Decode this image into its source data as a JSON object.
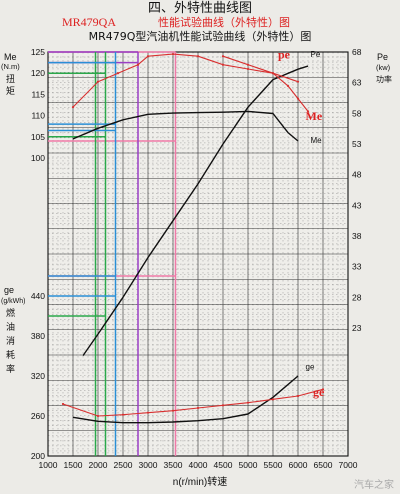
{
  "header": {
    "section_title": "四、外特性曲线图",
    "red_title_model": "MR479QA",
    "red_title_text": "性能试验曲线（外特性）图",
    "black_title": "MR479Q型汽油机性能试验曲线（外特性）图"
  },
  "watermark": "汽车之家",
  "colors": {
    "black_curve": "#111111",
    "red_curve": "#d83030",
    "green_lines": "#2aa84a",
    "blue_lines": "#2a8fd6",
    "purple_lines": "#9a3fc4",
    "pink_lines": "#f07aa8",
    "grid": "#555555"
  },
  "chart_data": {
    "type": "line",
    "xlabel": "n(r/min)转速",
    "xlim": [
      1000,
      7000
    ],
    "x_ticks": [
      "1000",
      "1500",
      "2000",
      "2500",
      "3000",
      "3500",
      "4000",
      "4500",
      "5000",
      "5500",
      "6000",
      "6500",
      "7000"
    ],
    "left_upper_axis": {
      "label": [
        "Me",
        "(N.m)",
        "扭",
        "矩"
      ],
      "range": [
        100,
        125
      ],
      "ticks": [
        "125",
        "120",
        "115",
        "110",
        "105",
        "100"
      ]
    },
    "left_lower_axis": {
      "label": [
        "ge",
        "(g/kWh)",
        "燃",
        "油",
        "消",
        "耗",
        "率"
      ],
      "range": [
        200,
        440
      ],
      "ticks": [
        "440",
        "380",
        "320",
        "260",
        "200"
      ]
    },
    "right_axis": {
      "label": [
        "Pe",
        "(kw)",
        "功率"
      ],
      "range": [
        23,
        68
      ],
      "ticks": [
        "68",
        "63",
        "58",
        "53",
        "48",
        "43",
        "38",
        "33",
        "28",
        "23"
      ]
    },
    "series": [
      {
        "name": "Me",
        "color": "black",
        "axis": "torque",
        "x": [
          1500,
          2000,
          2500,
          3000,
          3500,
          4000,
          4500,
          5000,
          5500,
          5800,
          6000
        ],
        "y": [
          104.5,
          107,
          109,
          110.3,
          110.6,
          110.7,
          110.8,
          111,
          110.5,
          106,
          104
        ]
      },
      {
        "name": "Pe",
        "color": "black",
        "axis": "power",
        "x": [
          1700,
          2000,
          2500,
          3000,
          3500,
          4000,
          4500,
          5000,
          5500,
          6000,
          6200
        ],
        "y": [
          18.5,
          22,
          28,
          34.5,
          40.5,
          46.5,
          53,
          59,
          63.5,
          65.2,
          65.7
        ]
      },
      {
        "name": "ge",
        "color": "black",
        "axis": "fuel",
        "x": [
          1500,
          2000,
          2500,
          3000,
          3500,
          4000,
          4500,
          5000,
          5500,
          6000
        ],
        "y": [
          258,
          252,
          250,
          250,
          251,
          253,
          256,
          263,
          288,
          320
        ]
      },
      {
        "name": "Pe",
        "color": "red",
        "axis": "torque",
        "x": [
          1500,
          2000,
          2400,
          2800,
          3000,
          3500,
          4000,
          4500,
          5000,
          5500,
          6000
        ],
        "y": [
          112,
          118,
          120,
          122,
          124,
          124.5,
          124,
          122,
          121,
          120,
          118
        ]
      },
      {
        "name": "Me",
        "color": "red",
        "axis": "torque",
        "x": [
          4500,
          5000,
          5500,
          5800,
          6000,
          6200
        ],
        "y": [
          124,
          122,
          120,
          117,
          114,
          111
        ]
      },
      {
        "name": "ge",
        "color": "red",
        "axis": "fuel",
        "x": [
          1300,
          2000,
          2500,
          3000,
          3500,
          4000,
          4500,
          5000,
          5500,
          6000,
          6500
        ],
        "y": [
          278,
          260,
          262,
          265,
          268,
          272,
          276,
          280,
          285,
          290,
          300
        ]
      }
    ],
    "black_labels": [
      {
        "text": "Pe",
        "x": 6250,
        "y": 67.2,
        "axis": "power"
      },
      {
        "text": "Me",
        "x": 6250,
        "y": 103.5,
        "axis": "torque"
      },
      {
        "text": "ge",
        "x": 6150,
        "y": 330,
        "axis": "fuel"
      }
    ],
    "red_labels": [
      {
        "text": "pe",
        "x": 5600,
        "y": 123.5,
        "axis": "torque"
      },
      {
        "text": "Me",
        "x": 6150,
        "y": 109,
        "axis": "torque"
      },
      {
        "text": "ge",
        "x": 6300,
        "y": 290,
        "axis": "fuel"
      }
    ],
    "markers": {
      "green_vertical_x": [
        1950,
        2150
      ],
      "green_horizontal_torque": [
        120,
        105
      ],
      "green_horizontal_fuel": [
        410
      ],
      "blue_vertical_x": [
        2350
      ],
      "blue_horizontal_torque": [
        122.5,
        108,
        106.5
      ],
      "blue_horizontal_fuel": [
        470,
        440
      ],
      "purple_vertical_x": [
        2800
      ],
      "purple_horizontal_torque": [
        125,
        122.5
      ],
      "pink_vertical_x": [
        3550
      ],
      "pink_horizontal_torque": [
        125,
        104
      ],
      "pink_horizontal_fuel": [
        470
      ]
    }
  }
}
